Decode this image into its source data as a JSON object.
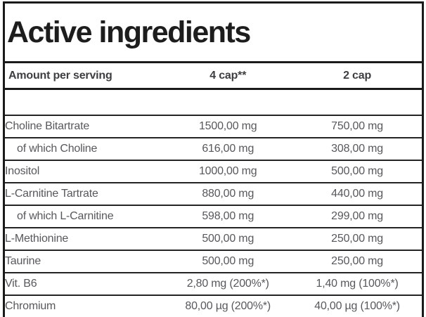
{
  "title": "Active ingredients",
  "colors": {
    "border": "#1a1a1a",
    "title_text": "#1d1d1d",
    "header_text": "#3d3e40",
    "body_text": "#57585b",
    "background": "#ffffff"
  },
  "table": {
    "header": {
      "col1": "Amount per serving",
      "col2": "4 cap**",
      "col3": "2 cap"
    },
    "rows": [
      {
        "name": "Choline Bitartrate",
        "per4": "1500,00 mg",
        "per2": "750,00 mg"
      },
      {
        "name": "of which Choline",
        "per4": "616,00 mg",
        "per2": "308,00 mg"
      },
      {
        "name": "Inositol",
        "per4": "1000,00 mg",
        "per2": "500,00 mg"
      },
      {
        "name": "L-Carnitine Tartrate",
        "per4": "880,00 mg",
        "per2": "440,00 mg"
      },
      {
        "name": "of which L-Carnitine",
        "per4": "598,00 mg",
        "per2": "299,00 mg"
      },
      {
        "name": "L-Methionine",
        "per4": "500,00 mg",
        "per2": "250,00 mg"
      },
      {
        "name": "Taurine",
        "per4": "500,00 mg",
        "per2": "250,00 mg"
      },
      {
        "name": "Vit. B6",
        "per4": "2,80 mg (200%*)",
        "per2": "1,40 mg (100%*)"
      },
      {
        "name": "Chromium",
        "per4": "80,00 µg (200%*)",
        "per2": "40,00 µg (100%*)"
      }
    ]
  }
}
